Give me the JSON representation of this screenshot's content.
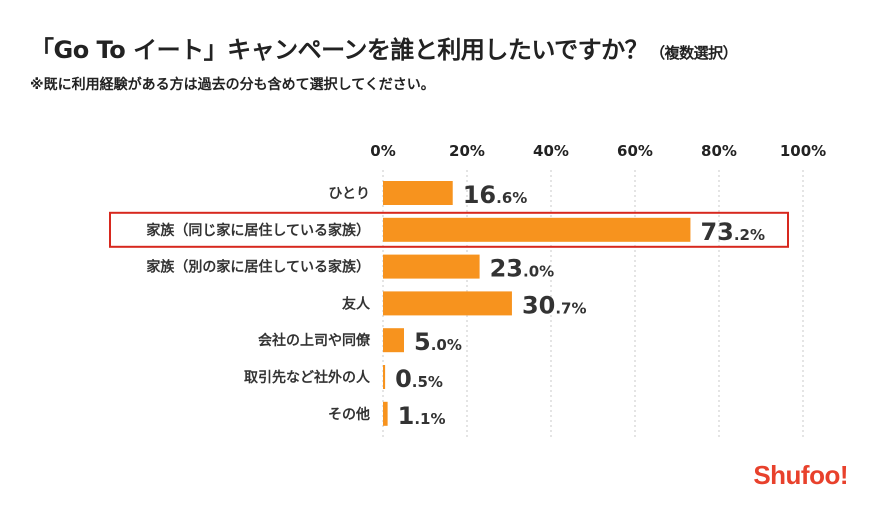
{
  "title": "「Go To イート」キャンペーンを誰と利用したいですか？",
  "title_suffix": "（複数選択）",
  "subtitle": "※既に利用経験がある方は過去の分も含めて選択してください。",
  "logo": "Shufoo!",
  "colors": {
    "bar": "#f7931e",
    "highlight": "#d7281e",
    "grid": "#c8c8c8",
    "logo": "#e8412c"
  },
  "chart_data": {
    "type": "bar",
    "orientation": "horizontal",
    "categories": [
      "ひとり",
      "家族（同じ家に居住している家族）",
      "家族（別の家に居住している家族）",
      "友人",
      "会社の上司や同僚",
      "取引先など社外の人",
      "その他"
    ],
    "values": [
      16.6,
      73.2,
      23.0,
      30.7,
      5.0,
      0.5,
      1.1
    ],
    "value_labels": [
      [
        "16",
        ".6%"
      ],
      [
        "73",
        ".2%"
      ],
      [
        "23",
        ".0%"
      ],
      [
        "30",
        ".7%"
      ],
      [
        "5",
        ".0%"
      ],
      [
        "0",
        ".5%"
      ],
      [
        "1",
        ".1%"
      ]
    ],
    "xlim": [
      0,
      100
    ],
    "x_ticks": [
      "0%",
      "20%",
      "40%",
      "60%",
      "80%",
      "100%"
    ],
    "x_tick_values": [
      0,
      20,
      40,
      60,
      80,
      100
    ],
    "x_axis_position": "top",
    "grid": "vertical-dotted",
    "highlighted_category": "家族（同じ家に居住している家族）"
  }
}
